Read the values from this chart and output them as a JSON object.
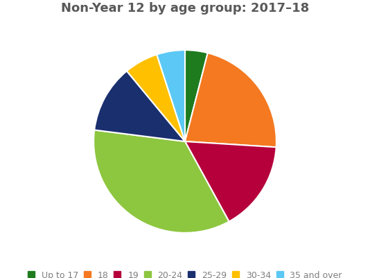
{
  "title": "Non-Year 12 by age group: 2017–18",
  "labels": [
    "Up to 17",
    "18",
    "19",
    "20-24",
    "25-29",
    "30-34",
    "35 and over"
  ],
  "values": [
    4,
    22,
    16,
    35,
    12,
    6,
    5
  ],
  "colors": [
    "#1e7b1e",
    "#f47920",
    "#b5003b",
    "#8dc63f",
    "#1a2f6e",
    "#ffc000",
    "#5bc8f5"
  ],
  "title_fontsize": 13,
  "title_color": "#595959",
  "legend_fontsize": 9,
  "legend_color": "#7f7f7f",
  "background_color": "#ffffff",
  "startangle": 90,
  "edge_color": "#ffffff",
  "edge_linewidth": 1.5
}
